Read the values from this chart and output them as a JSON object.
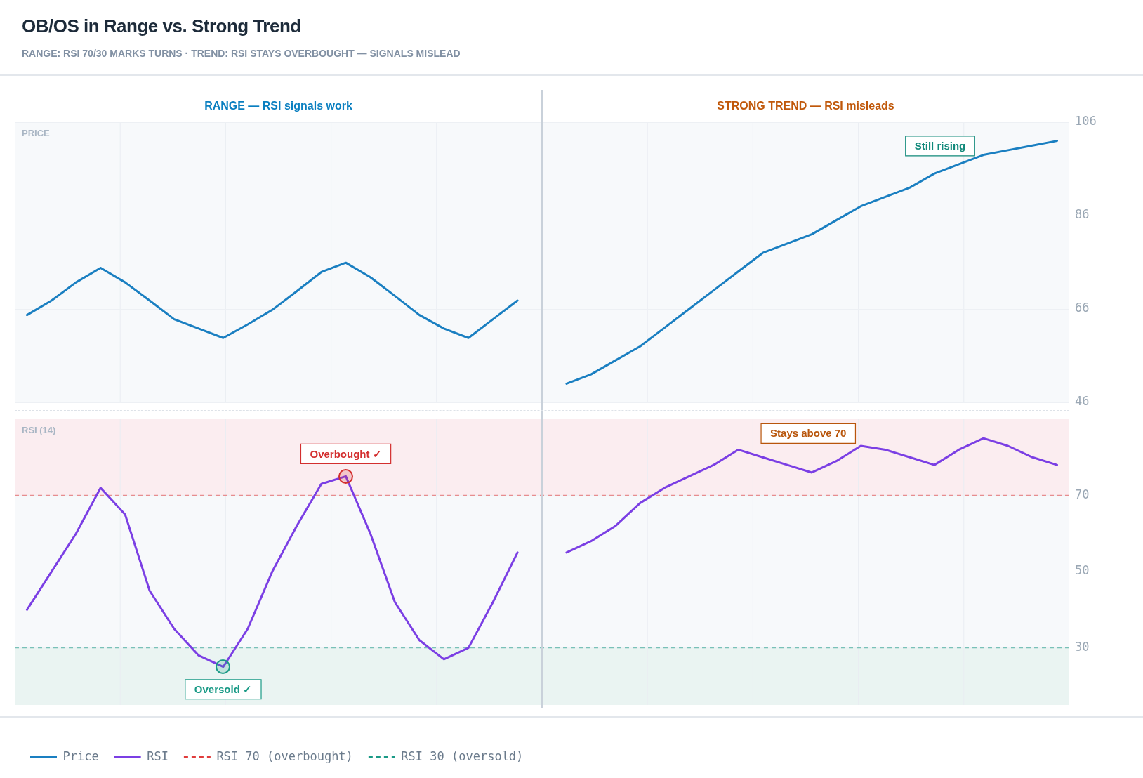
{
  "chart_data": [
    {
      "type": "line",
      "title": "OB/OS in Range vs. Strong Trend",
      "subtitle": "RANGE: RSI 70/30 MARKS TURNS · TREND: RSI STAYS OVERBOUGHT — SIGNALS MISLEAD",
      "ylabel": "PRICE",
      "categories": [
        null,
        null,
        null,
        null,
        null,
        null,
        null,
        null,
        null,
        null,
        null,
        null,
        null,
        null,
        null,
        null,
        null,
        null,
        null,
        null,
        null,
        null,
        null,
        null,
        null,
        null,
        null,
        null,
        null,
        null,
        null,
        null,
        null,
        null,
        null,
        null,
        null,
        null,
        null,
        null,
        null,
        null,
        null
      ],
      "series": [
        {
          "name": "Price",
          "color": "#1a7fc1",
          "values": [
            64.7,
            67.8,
            71.7,
            74.8,
            71.7,
            67.8,
            63.8,
            61.8,
            59.8,
            62.7,
            65.8,
            69.8,
            73.9,
            75.9,
            72.8,
            68.8,
            64.7,
            61.8,
            59.8,
            63.8,
            67.8,
            null,
            50,
            52,
            55,
            58,
            62,
            66,
            70,
            74,
            78,
            80,
            82,
            85,
            88,
            90,
            92,
            95,
            97,
            99,
            100,
            101,
            102
          ]
        }
      ],
      "ylim": [
        46,
        106
      ],
      "yticks": [
        46,
        66,
        86,
        106
      ],
      "annotations": [
        "RANGE — RSI signals work",
        "STRONG TREND — RSI misleads",
        "Still rising"
      ],
      "grid": true,
      "marker": "none",
      "line_style": "solid"
    },
    {
      "type": "line",
      "ylabel": "RSI (14)",
      "categories": [
        null,
        null,
        null,
        null,
        null,
        null,
        null,
        null,
        null,
        null,
        null,
        null,
        null,
        null,
        null,
        null,
        null,
        null,
        null,
        null,
        null,
        null,
        null,
        null,
        null,
        null,
        null,
        null,
        null,
        null,
        null,
        null,
        null,
        null,
        null,
        null,
        null,
        null,
        null,
        null,
        null,
        null,
        null
      ],
      "series": [
        {
          "name": "RSI",
          "color": "#7b3fe4",
          "values": [
            40,
            50,
            60,
            72,
            65,
            45,
            35,
            28,
            25,
            35,
            50,
            62,
            73,
            75,
            60,
            42,
            32,
            27,
            30,
            42,
            55,
            null,
            55,
            58,
            62,
            68,
            72,
            75,
            78,
            82,
            80,
            78,
            76,
            79,
            83,
            82,
            80,
            78,
            82,
            85,
            83,
            80,
            78
          ]
        }
      ],
      "ylim": [
        15,
        90
      ],
      "yticks": [
        30,
        50,
        70
      ],
      "ref_lines": [
        {
          "axis": "y",
          "value": 70,
          "label": "RSI 70 (overbought)",
          "color": "#e03c3c",
          "line_style": "dashed"
        },
        {
          "axis": "y",
          "value": 30,
          "label": "RSI 30 (oversold)",
          "color": "#1a9a86",
          "line_style": "dashed"
        }
      ],
      "bands": [
        {
          "axis": "y",
          "from": 70,
          "to": 90,
          "color": "#fbedf0"
        },
        {
          "axis": "y",
          "from": 15,
          "to": 30,
          "color": "#eaf4f2"
        }
      ],
      "annotations": [
        {
          "text": "Oversold ✓",
          "y": 25
        },
        {
          "text": "Overbought ✓",
          "y": 75
        },
        "Stays above 70"
      ],
      "grid": true,
      "legend": "bottom",
      "marker": "none",
      "line_style": "solid"
    }
  ]
}
